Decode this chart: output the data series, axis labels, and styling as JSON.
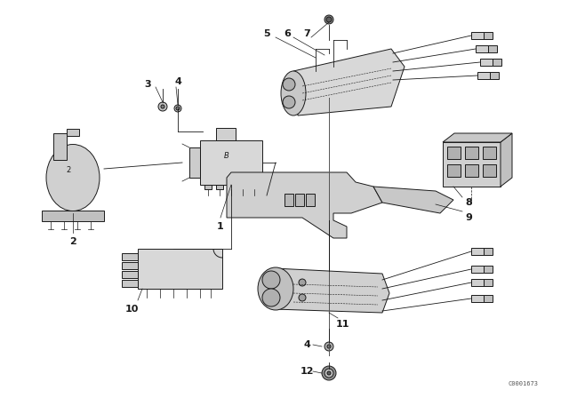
{
  "background_color": "#ffffff",
  "line_color": "#1a1a1a",
  "catalog_number": "C0001673",
  "fig_width": 6.4,
  "fig_height": 4.48,
  "dpi": 100,
  "xlim": [
    0,
    640
  ],
  "ylim": [
    0,
    448
  ]
}
